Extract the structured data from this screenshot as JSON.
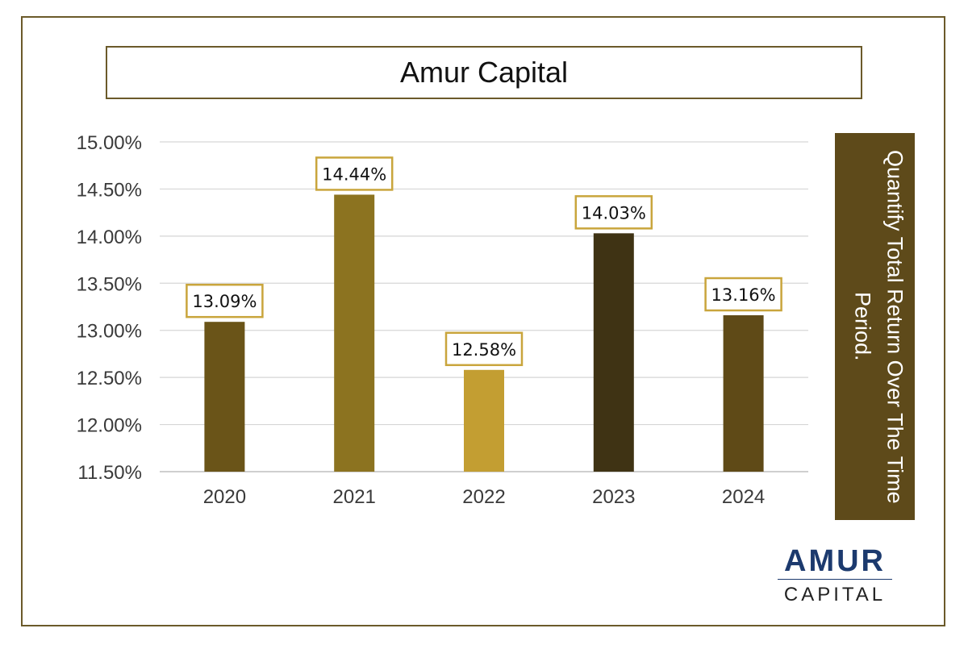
{
  "title": "Amur Capital",
  "side_note": "Quantify Total Return Over The Time Period.",
  "logo": {
    "top": "AMUR",
    "bottom": "CAPITAL"
  },
  "colors": {
    "frame": "#6b5a2a",
    "side_panel": "#5e4a1a",
    "label_border": "#c9a53c",
    "logo_blue": "#1c3a6e"
  },
  "chart_data": {
    "type": "bar",
    "categories": [
      "2020",
      "2021",
      "2022",
      "2023",
      "2024"
    ],
    "values": [
      13.09,
      14.44,
      12.58,
      14.03,
      13.16
    ],
    "value_labels": [
      "13.09%",
      "14.44%",
      "12.58%",
      "14.03%",
      "13.16%"
    ],
    "bar_colors": [
      "#6a5418",
      "#8c7320",
      "#c39e32",
      "#3f3314",
      "#5f4a17"
    ],
    "ylim": [
      11.5,
      15.0
    ],
    "yticks": [
      "11.50%",
      "12.00%",
      "12.50%",
      "13.00%",
      "13.50%",
      "14.00%",
      "14.50%",
      "15.00%"
    ],
    "ytick_values": [
      11.5,
      12.0,
      12.5,
      13.0,
      13.5,
      14.0,
      14.5,
      15.0
    ],
    "grid": true,
    "xlabel": "",
    "ylabel": ""
  }
}
